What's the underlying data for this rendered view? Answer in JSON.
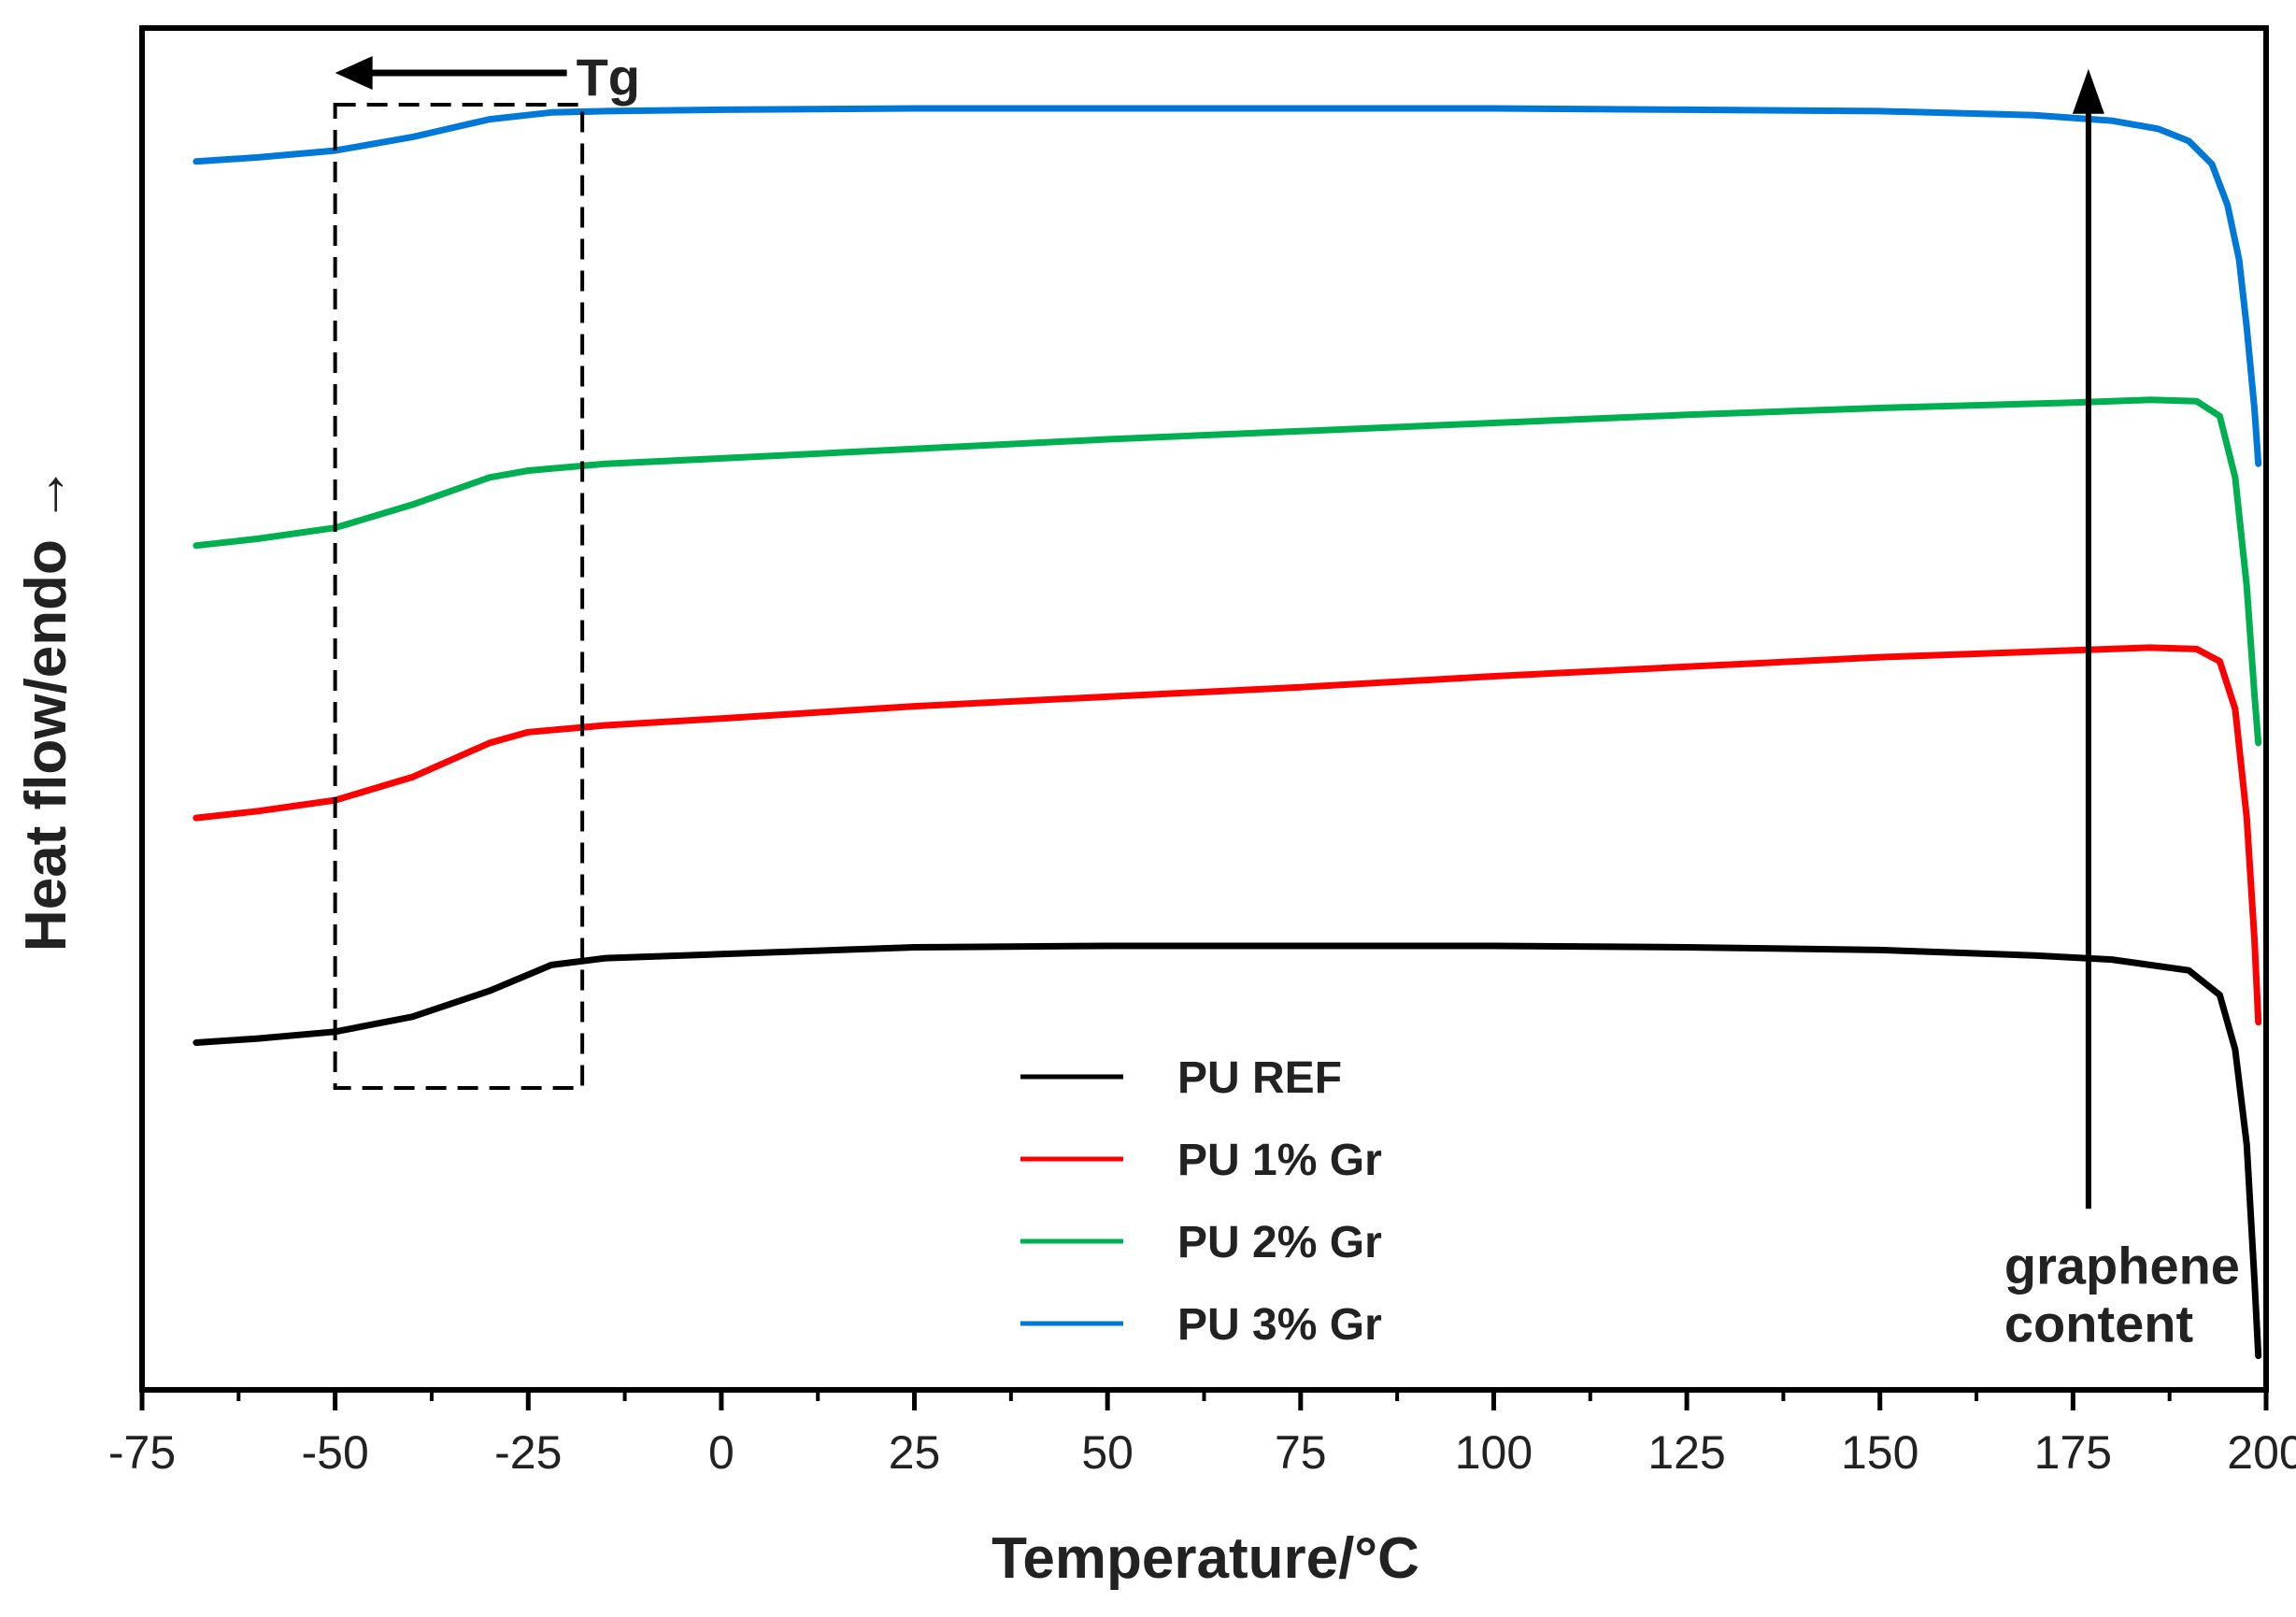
{
  "chart_data": {
    "type": "line",
    "title": "",
    "xlabel": "Temperature/°C",
    "ylabel": "Heat flow/endo →",
    "xlim": [
      -75,
      200
    ],
    "ylim": [
      0,
      100
    ],
    "xticks": [
      -75,
      -50,
      -25,
      0,
      25,
      50,
      75,
      100,
      125,
      150,
      175,
      200
    ],
    "xticklabels": [
      "-75",
      "-50",
      "-25",
      "0",
      "25",
      "50",
      "75",
      "100",
      "125",
      "150",
      "175",
      "200"
    ],
    "yticks": "none (arbitrary units)",
    "grid": false,
    "legend_position": "bottom-center",
    "series": [
      {
        "name": "PU REF",
        "color": "#000000",
        "x": [
          -68,
          -60,
          -50,
          -40,
          -30,
          -22,
          -15,
          0,
          25,
          50,
          75,
          100,
          125,
          150,
          170,
          180,
          190,
          194,
          196,
          197.5,
          198.5,
          199
        ],
        "y": [
          25.5,
          25.8,
          26.3,
          27.4,
          29.3,
          31.2,
          31.7,
          32.0,
          32.5,
          32.6,
          32.6,
          32.6,
          32.5,
          32.3,
          31.9,
          31.6,
          30.8,
          29.0,
          25.0,
          18.0,
          8.0,
          2.5
        ]
      },
      {
        "name": "PU 1% Gr",
        "color": "#ff0000",
        "x": [
          -68,
          -60,
          -50,
          -40,
          -30,
          -25,
          -15,
          0,
          25,
          50,
          75,
          100,
          125,
          150,
          175,
          185,
          191,
          194,
          196,
          197.5,
          198.5,
          199
        ],
        "y": [
          42.0,
          42.5,
          43.3,
          45.0,
          47.5,
          48.3,
          48.8,
          49.3,
          50.2,
          50.9,
          51.6,
          52.4,
          53.1,
          53.8,
          54.3,
          54.5,
          54.4,
          53.5,
          50.0,
          42.0,
          33.0,
          27.0
        ]
      },
      {
        "name": "PU 2% Gr",
        "color": "#00b050",
        "x": [
          -68,
          -60,
          -50,
          -40,
          -30,
          -25,
          -15,
          0,
          25,
          50,
          75,
          100,
          125,
          150,
          175,
          185,
          191,
          194,
          196,
          197.5,
          198.5,
          199
        ],
        "y": [
          62.0,
          62.5,
          63.3,
          65.0,
          67.0,
          67.5,
          68.0,
          68.4,
          69.1,
          69.8,
          70.4,
          71.0,
          71.6,
          72.1,
          72.5,
          72.7,
          72.6,
          71.5,
          67.0,
          59.0,
          51.0,
          47.5
        ]
      },
      {
        "name": "PU 3% Gr",
        "color": "#0078d7",
        "x": [
          -68,
          -60,
          -50,
          -40,
          -30,
          -22,
          -15,
          0,
          25,
          50,
          75,
          100,
          125,
          150,
          170,
          180,
          186,
          190,
          193,
          195,
          196.5,
          197.5,
          198.5,
          199
        ],
        "y": [
          90.2,
          90.5,
          91.0,
          92.0,
          93.3,
          93.8,
          93.9,
          94.0,
          94.1,
          94.1,
          94.1,
          94.1,
          94.0,
          93.9,
          93.6,
          93.2,
          92.6,
          91.7,
          90.0,
          87.0,
          83.0,
          78.0,
          72.0,
          68.0
        ]
      }
    ],
    "annotations": {
      "tg_label": "Tg",
      "tg_box_x": [
        -50,
        -18
      ],
      "tg_arrow_x": [
        -20,
        -50
      ],
      "graphene_label_line1": "graphene",
      "graphene_label_line2": "content",
      "graphene_arrow_x": 177,
      "graphene_arrow_y": [
        3,
        97
      ]
    }
  }
}
